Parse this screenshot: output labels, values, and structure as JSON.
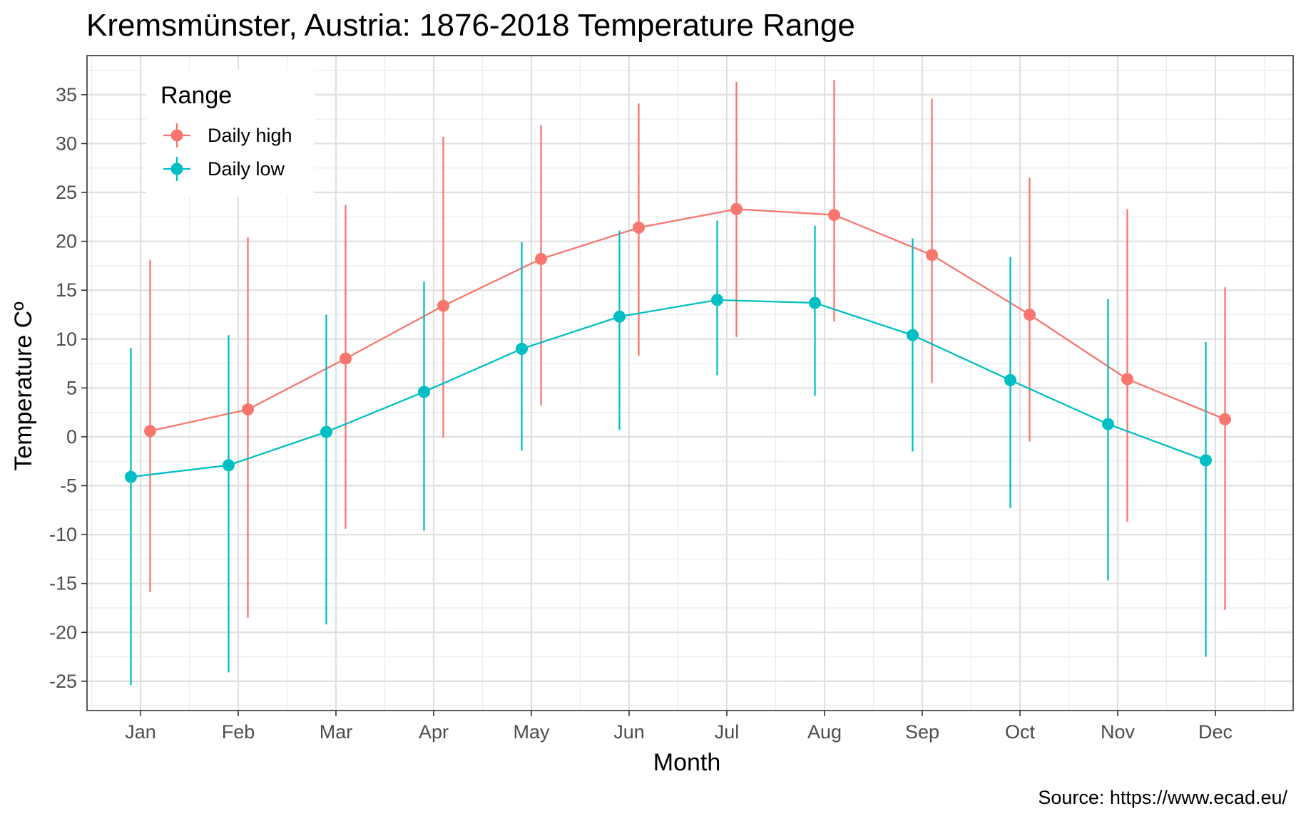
{
  "chart_data": {
    "type": "line",
    "title": "Kremsmünster, Austria: 1876-2018 Temperature Range",
    "xlabel": "Month",
    "ylabel": "Temperature Cº",
    "caption": "Source: https://www.ecad.eu/",
    "categories": [
      "Jan",
      "Feb",
      "Mar",
      "Apr",
      "May",
      "Jun",
      "Jul",
      "Aug",
      "Sep",
      "Oct",
      "Nov",
      "Dec"
    ],
    "ylim": [
      -28,
      39
    ],
    "yticks": [
      35,
      30,
      25,
      20,
      15,
      10,
      5,
      0,
      -5,
      -10,
      -15,
      -20,
      -25
    ],
    "grid": true,
    "legend": {
      "title": "Range",
      "position": "top-left inside"
    },
    "series": [
      {
        "name": "Daily high",
        "color": "#F8766D",
        "values": [
          0.6,
          2.8,
          8.0,
          13.4,
          18.2,
          21.4,
          23.3,
          22.7,
          18.6,
          12.5,
          5.9,
          1.8
        ],
        "min": [
          -15.9,
          -18.5,
          -9.4,
          -0.1,
          3.2,
          8.3,
          10.2,
          11.8,
          5.5,
          -0.5,
          -8.7,
          -17.7
        ],
        "max": [
          18.1,
          20.4,
          23.7,
          30.7,
          31.9,
          34.1,
          36.3,
          36.5,
          34.6,
          26.5,
          23.3,
          15.3
        ]
      },
      {
        "name": "Daily low",
        "color": "#00BFC4",
        "values": [
          -4.1,
          -2.9,
          0.5,
          4.6,
          9.0,
          12.3,
          14.0,
          13.7,
          10.4,
          5.8,
          1.3,
          -2.4
        ],
        "min": [
          -25.4,
          -24.1,
          -19.2,
          -9.6,
          -1.4,
          0.7,
          6.3,
          4.2,
          -1.5,
          -7.3,
          -14.7,
          -22.5
        ],
        "max": [
          9.1,
          10.4,
          12.5,
          15.9,
          19.9,
          21.1,
          22.1,
          21.6,
          20.3,
          18.4,
          14.1,
          9.7
        ]
      }
    ]
  }
}
